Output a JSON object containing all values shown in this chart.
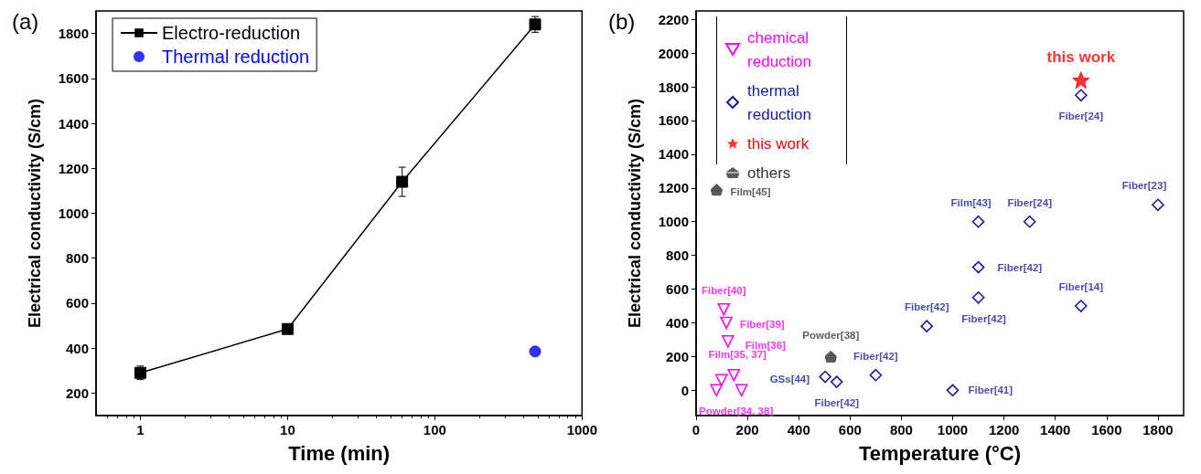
{
  "chart_data": [
    {
      "type": "line",
      "title": "(a)",
      "xlabel": "Time (min)",
      "ylabel": "Electrical conductivity (S/cm)",
      "log": "x",
      "xlim": [
        0.5,
        1000
      ],
      "xticks": [
        1,
        10,
        100,
        1000
      ],
      "ylim": [
        100,
        1900
      ],
      "yticks": [
        200,
        400,
        600,
        800,
        1000,
        1200,
        1400,
        1600,
        1800
      ],
      "grid": false,
      "legend": "top left",
      "series": [
        {
          "name": "Electro-reduction",
          "color": "#000000",
          "marker": "square",
          "x": [
            1,
            10,
            60,
            480
          ],
          "values": [
            290,
            485,
            1140,
            1840
          ],
          "errors": [
            30,
            15,
            65,
            35
          ]
        },
        {
          "name": "Thermal reduction",
          "type": "scatter",
          "color": "#0000ff",
          "marker": "circle",
          "x": [
            480
          ],
          "values": [
            385
          ]
        }
      ]
    },
    {
      "type": "scatter",
      "title": "(b)",
      "xlabel": "Temperature (°C)",
      "ylabel": "Electrical conductivity (S/cm)",
      "xlim": [
        0,
        1900
      ],
      "xticks": [
        0,
        200,
        400,
        600,
        800,
        1000,
        1200,
        1400,
        1600,
        1800
      ],
      "ylim": [
        -150,
        2250
      ],
      "yticks": [
        0,
        200,
        400,
        600,
        800,
        1000,
        1200,
        1400,
        1600,
        1800,
        2000,
        2200
      ],
      "grid": false,
      "legend": "top left",
      "series": [
        {
          "name": "chemical reduction",
          "color": "#ff00ff",
          "marker": "triangle",
          "x": [
            108,
            118,
            124,
            99,
            147,
            79,
            177
          ],
          "values": [
            480,
            400,
            290,
            60,
            90,
            0,
            0
          ]
        },
        {
          "name": "thermal reduction",
          "color": "#1a1a9c",
          "marker": "diamond",
          "x": [
            503,
            548,
            700,
            899,
            1100,
            1100,
            1000,
            1500,
            1100,
            1300,
            1500,
            1800
          ],
          "values": [
            80,
            50,
            90,
            380,
            730,
            550,
            0,
            500,
            1000,
            1000,
            1750,
            1100
          ]
        },
        {
          "name": "this work",
          "color": "#ff0000",
          "marker": "star",
          "x": [
            1500
          ],
          "values": [
            1840
          ]
        },
        {
          "name": "others",
          "color": "#333333",
          "x": [
            80,
            525
          ],
          "values": [
            1190,
            200
          ]
        }
      ],
      "annotations": [
        {
          "text": "Fiber[40]",
          "x": 108,
          "y": 480
        },
        {
          "text": "Fiber[39]",
          "x": 118,
          "y": 400
        },
        {
          "text": "Film[36]",
          "x": 124,
          "y": 290
        },
        {
          "text": "Film[35, 37]",
          "x": 147,
          "y": 90
        },
        {
          "text": "Powder[34, 38]",
          "x": 177,
          "y": 0
        },
        {
          "text": "GSs[44]",
          "x": 503,
          "y": 80
        },
        {
          "text": "Fiber[42]",
          "x": 548,
          "y": 50
        },
        {
          "text": "Fiber[42]",
          "x": 700,
          "y": 90
        },
        {
          "text": "Fiber[41]",
          "x": 1000,
          "y": 0
        },
        {
          "text": "Fiber[42]",
          "x": 899,
          "y": 380
        },
        {
          "text": "Fiber[42]",
          "x": 1100,
          "y": 550
        },
        {
          "text": "Fiber[42]",
          "x": 1100,
          "y": 730
        },
        {
          "text": "Fiber[14]",
          "x": 1500,
          "y": 500
        },
        {
          "text": "Powder[38]",
          "x": 525,
          "y": 200
        },
        {
          "text": "Film[45]",
          "x": 80,
          "y": 1190
        },
        {
          "text": "Film[43]",
          "x": 1100,
          "y": 1000
        },
        {
          "text": "Fiber[24]",
          "x": 1300,
          "y": 1000
        },
        {
          "text": "Fiber[24]",
          "x": 1500,
          "y": 1750
        },
        {
          "text": "Fiber[23]",
          "x": 1800,
          "y": 1100
        },
        {
          "text": "this work",
          "x": 1500,
          "y": 1840
        }
      ]
    }
  ]
}
